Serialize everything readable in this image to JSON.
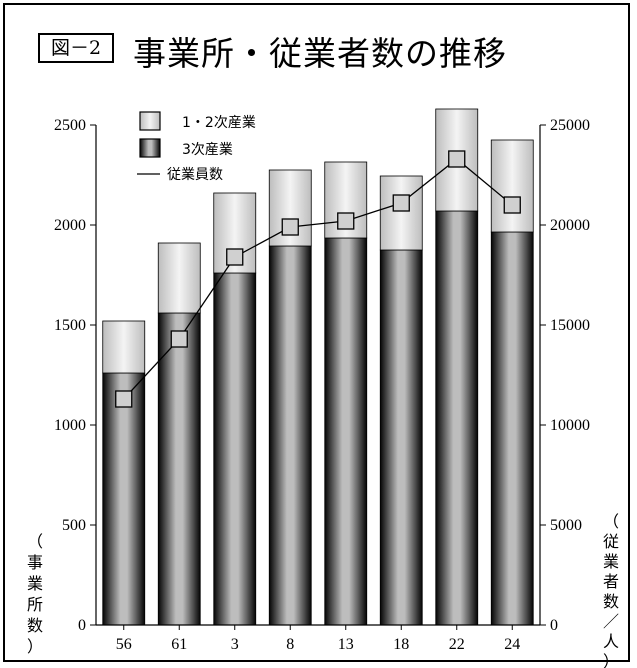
{
  "figure_label": "図－2",
  "chart_data": {
    "type": "bar",
    "title": "事業所・従業者数の推移",
    "categories": [
      "56",
      "61",
      "3",
      "8",
      "13",
      "18",
      "22",
      "24"
    ],
    "series": [
      {
        "name": "1・2次産業",
        "values": [
          260,
          350,
          400,
          380,
          380,
          370,
          510,
          460
        ]
      },
      {
        "name": "3次産業",
        "values": [
          1260,
          1560,
          1760,
          1895,
          1935,
          1875,
          2070,
          1965
        ]
      },
      {
        "name": "従業員数",
        "values": [
          11300,
          14300,
          18400,
          19900,
          20200,
          21100,
          23300,
          21000
        ]
      }
    ],
    "left_ylabel": "（事業所数）",
    "right_ylabel": "（従業者数／人）",
    "left_ylim": [
      0,
      2500
    ],
    "right_ylim": [
      0,
      25000
    ],
    "left_ticks": [
      0,
      500,
      1000,
      1500,
      2000,
      2500
    ],
    "right_ticks": [
      0,
      5000,
      10000,
      15000,
      20000,
      25000
    ],
    "legend_position": "top-left"
  },
  "colors": {
    "light_bar": "#d9d9d9",
    "dark_bar": "#111111",
    "line": "#000000",
    "marker_fill": "#d0d0d0"
  }
}
